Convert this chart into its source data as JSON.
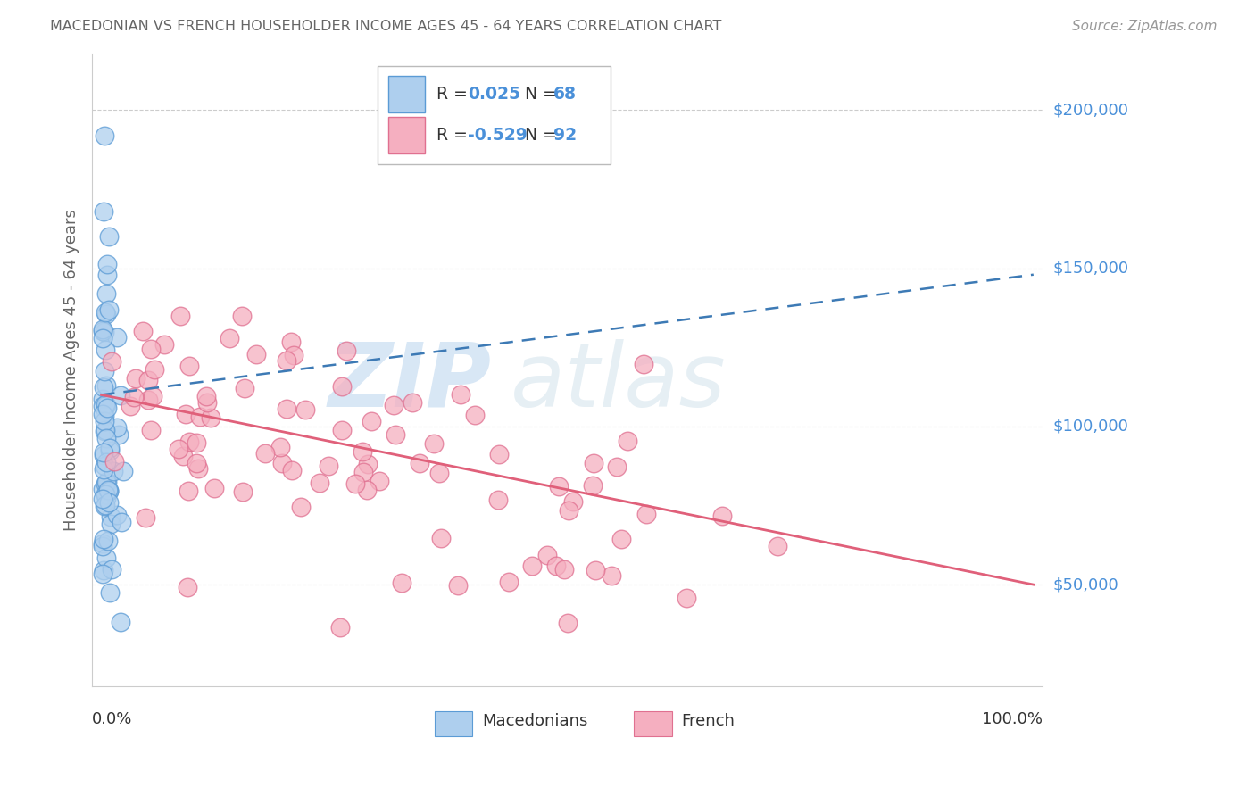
{
  "title": "MACEDONIAN VS FRENCH HOUSEHOLDER INCOME AGES 45 - 64 YEARS CORRELATION CHART",
  "source": "Source: ZipAtlas.com",
  "ylabel": "Householder Income Ages 45 - 64 years",
  "ytick_labels": [
    "$50,000",
    "$100,000",
    "$150,000",
    "$200,000"
  ],
  "ytick_values": [
    50000,
    100000,
    150000,
    200000
  ],
  "macedonian_color": "#aecfee",
  "french_color": "#f5afc0",
  "macedonian_edge_color": "#5b9bd5",
  "french_edge_color": "#e07090",
  "macedonian_line_color": "#3d7ab5",
  "french_line_color": "#e0607a",
  "background_color": "#ffffff",
  "grid_color": "#cccccc",
  "title_color": "#666666",
  "ylabel_color": "#666666",
  "ytick_color": "#4a90d9",
  "legend_R_color": "#4a90d9",
  "watermark_zip": "ZIP",
  "watermark_atlas": "atlas",
  "legend_mac_R": "0.025",
  "legend_mac_N": "68",
  "legend_fre_R": "-0.529",
  "legend_fre_N": "92"
}
